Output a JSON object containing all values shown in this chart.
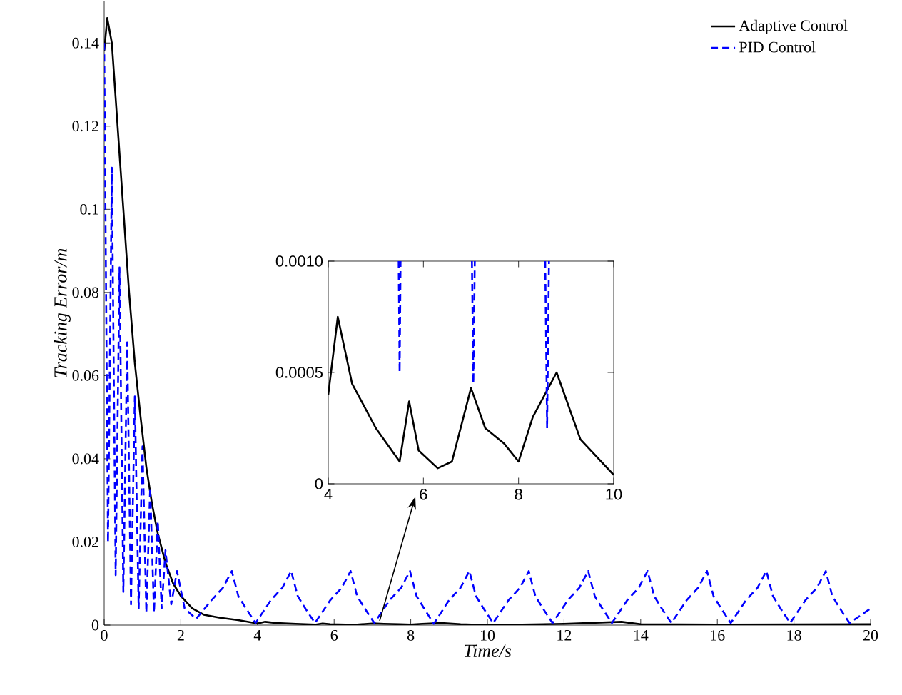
{
  "chart_data": [
    {
      "type": "line",
      "xlabel": "Time/s",
      "ylabel": "Tracking Error/m",
      "xlim": [
        0,
        20
      ],
      "ylim": [
        0,
        0.15
      ],
      "xticks": [
        0,
        2,
        4,
        6,
        8,
        10,
        12,
        14,
        16,
        18,
        20
      ],
      "yticks": [
        0,
        0.02,
        0.04,
        0.06,
        0.08,
        0.1,
        0.12,
        0.14
      ],
      "legend": "top right",
      "series": [
        {
          "name": "Adaptive Control",
          "color": "#000000",
          "line_style": "solid",
          "x": [
            0,
            0.08,
            0.2,
            0.35,
            0.5,
            0.65,
            0.8,
            0.95,
            1.1,
            1.25,
            1.4,
            1.6,
            1.8,
            2.0,
            2.3,
            2.6,
            3.0,
            3.5,
            4.0,
            4.2,
            4.5,
            5.0,
            5.5,
            5.7,
            5.9,
            6.3,
            6.6,
            7.0,
            7.3,
            7.7,
            8.0,
            8.3,
            8.8,
            9.3,
            10,
            12,
            13.5,
            14,
            16,
            20
          ],
          "values": [
            0.138,
            0.146,
            0.14,
            0.12,
            0.1,
            0.08,
            0.063,
            0.05,
            0.038,
            0.029,
            0.022,
            0.015,
            0.01,
            0.007,
            0.004,
            0.0025,
            0.0018,
            0.0012,
            0.0004,
            0.0008,
            0.0005,
            0.0003,
            0.0001,
            0.0004,
            0.0002,
            0.0001,
            0.0001,
            0.0004,
            0.0003,
            0.0002,
            0.0001,
            0.0003,
            0.0005,
            0.0002,
            0,
            0.0003,
            0.0008,
            0.0002,
            0.0001,
            0.0002
          ]
        },
        {
          "name": "PID Control",
          "color": "#0000ff",
          "line_style": "dashed",
          "x": [
            0,
            0.1,
            0.2,
            0.3,
            0.4,
            0.5,
            0.6,
            0.7,
            0.8,
            0.9,
            1.0,
            1.1,
            1.2,
            1.3,
            1.4,
            1.5,
            1.6,
            1.75,
            1.9,
            2.1,
            2.4,
            2.8,
            3.1,
            3.33,
            3.5,
            3.7,
            3.95,
            4.35,
            4.65,
            4.88,
            5.05,
            5.25,
            5.5,
            5.9,
            6.2,
            6.43,
            6.6,
            6.8,
            7.05,
            7.45,
            7.75,
            7.98,
            8.15,
            8.35,
            8.6,
            9.0,
            9.3,
            9.53,
            9.7,
            9.9,
            10.15,
            10.55,
            10.85,
            11.08,
            11.25,
            11.45,
            11.7,
            12.1,
            12.4,
            12.63,
            12.8,
            13.0,
            13.25,
            13.65,
            13.95,
            14.18,
            14.35,
            14.55,
            14.8,
            15.2,
            15.5,
            15.73,
            15.9,
            16.1,
            16.35,
            16.75,
            17.05,
            17.28,
            17.45,
            17.65,
            17.9,
            18.3,
            18.6,
            18.83,
            19.0,
            19.2,
            19.45,
            20
          ],
          "values": [
            0.14,
            0.02,
            0.11,
            0.012,
            0.086,
            0.008,
            0.068,
            0.005,
            0.055,
            0.004,
            0.043,
            0.003,
            0.033,
            0.003,
            0.025,
            0.004,
            0.018,
            0.005,
            0.013,
            0.004,
            0.0015,
            0.006,
            0.009,
            0.013,
            0.007,
            0.004,
            0.0005,
            0.006,
            0.009,
            0.013,
            0.007,
            0.004,
            0.0005,
            0.006,
            0.009,
            0.013,
            0.007,
            0.004,
            0.0005,
            0.006,
            0.009,
            0.013,
            0.007,
            0.004,
            0.0003,
            0.006,
            0.009,
            0.013,
            0.007,
            0.004,
            0.0005,
            0.006,
            0.009,
            0.013,
            0.007,
            0.004,
            0.0005,
            0.006,
            0.009,
            0.013,
            0.007,
            0.004,
            0.0005,
            0.006,
            0.009,
            0.013,
            0.007,
            0.004,
            0.0005,
            0.006,
            0.009,
            0.013,
            0.007,
            0.004,
            0.0005,
            0.006,
            0.009,
            0.013,
            0.007,
            0.004,
            0.0005,
            0.006,
            0.009,
            0.013,
            0.007,
            0.004,
            0.0005,
            0.004
          ]
        }
      ]
    },
    {
      "type": "line",
      "xlim": [
        4,
        10
      ],
      "ylim": [
        0,
        0.001
      ],
      "xticks": [
        4,
        6,
        8,
        10
      ],
      "yticks": [
        0,
        0.0005,
        {
          "value": 0.001,
          "label": "0.0010"
        }
      ],
      "series": [
        {
          "color": "#000000",
          "line_style": "solid",
          "x": [
            4.0,
            4.2,
            4.5,
            5.0,
            5.5,
            5.7,
            5.9,
            6.3,
            6.6,
            7.0,
            7.3,
            7.7,
            8.0,
            8.3,
            8.8,
            9.3,
            10
          ],
          "values": [
            0.0004,
            0.00075,
            0.00045,
            0.00025,
            0.0001,
            0.00037,
            0.00015,
            7e-05,
            0.0001,
            0.00043,
            0.00025,
            0.00018,
            0.0001,
            0.0003,
            0.0005,
            0.0002,
            4e-05
          ]
        },
        {
          "color": "#0000ff",
          "line_style": "dashed",
          "x": [
            5.48,
            5.5,
            5.52,
            6.0,
            7.02,
            7.05,
            7.08,
            8.0,
            8.56,
            8.6,
            8.64
          ],
          "values": [
            0.001,
            0.0005,
            0.001,
            null,
            0.001,
            0.00045,
            0.001,
            null,
            0.001,
            0.00025,
            0.001
          ]
        }
      ]
    }
  ]
}
